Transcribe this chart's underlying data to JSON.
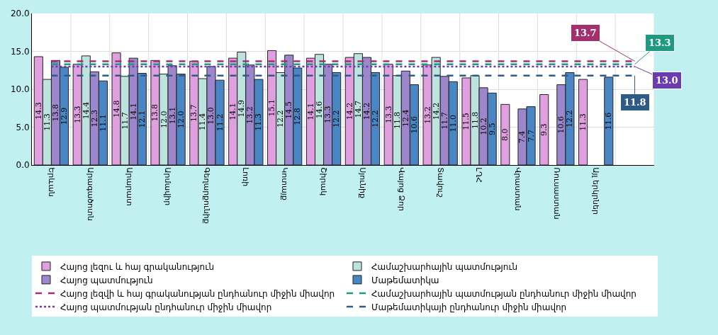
{
  "chart_data": {
    "type": "bar",
    "categories": [
      "Երևան",
      "Արագածոտն",
      "Արարատ",
      "Արմավիր",
      "Գեղարքունիք",
      "Լոռի",
      "Կոտայք",
      "Շիրակ",
      "Սյունիք",
      "Վայոց Ձոր",
      "Տավուշ",
      "ԼՂՀ",
      "Վրաստան",
      "Ռուսաստան",
      "Այլ երկրներ",
      null
    ],
    "series": [
      {
        "name": "Հայոց լեզու և հայ գրականություն",
        "color": "#e0a0e0",
        "values": [
          14.3,
          13.3,
          14.8,
          13.8,
          13.7,
          14.1,
          15.1,
          14.1,
          14.2,
          13.3,
          13.2,
          11.5,
          8.0,
          9.3,
          11.3,
          null
        ],
        "value_labels": [
          "14.3",
          "13.3",
          "14.8",
          "13.8",
          "13.7",
          "14.1",
          "15.1",
          "14.1",
          "14.2",
          "13.3",
          "13.2",
          "11.5",
          "8.0",
          "9.3",
          "11.3",
          null
        ]
      },
      {
        "name": "Համաշխարհային պատմություն",
        "color": "#bde3df",
        "values": [
          11.3,
          14.4,
          11.7,
          12.0,
          11.4,
          14.9,
          12.2,
          14.6,
          14.7,
          11.8,
          14.2,
          11.8,
          null,
          null,
          null,
          null
        ],
        "value_labels": [
          "11.3",
          "14.4",
          "11.7",
          "12.0",
          "11.4",
          "14.9",
          "12.2",
          "14.6",
          "14.7",
          "11.8",
          "14.2",
          "11.8",
          null,
          null,
          null,
          null
        ]
      },
      {
        "name": "Հայոց պատմություն",
        "color": "#9e86cc",
        "values": [
          13.8,
          12.3,
          14.1,
          13.1,
          13.0,
          13.2,
          14.5,
          13.3,
          14.2,
          12.4,
          11.7,
          10.2,
          7.4,
          10.6,
          null,
          null
        ],
        "value_labels": [
          "13.8",
          "12.3",
          "14.1",
          "13.1",
          "13.0",
          "13.2",
          "14.5",
          "13.3",
          "14.2",
          "12.4",
          "11.7",
          "10.2",
          "7.4",
          "10.6",
          null,
          null
        ]
      },
      {
        "name": "Մաթեմատիկա",
        "color": "#4a86c4",
        "values": [
          12.9,
          11.1,
          12.1,
          12.0,
          11.2,
          11.3,
          12.8,
          12.2,
          12.2,
          10.6,
          11.0,
          9.5,
          7.7,
          12.2,
          11.6,
          null
        ],
        "value_labels": [
          "12.9",
          "11.1",
          "12.1",
          "12.0",
          "11.2",
          "11.3",
          "12.8",
          "12.2",
          "12.2",
          "10.6",
          "11.0",
          "9.5",
          "7.7",
          "12.2",
          "11.6",
          null
        ]
      },
      {
        "name": "Հայոց լեզվի և հայ գրականության ընդհանուր միջին միավոր",
        "type": "line",
        "color": "#a0306e",
        "line_style": "dashed",
        "values": [
          13.7,
          13.7,
          13.7,
          13.7,
          13.7,
          13.7,
          13.7,
          13.7,
          13.7,
          13.7,
          13.7,
          13.7,
          13.7,
          13.7,
          13.7,
          13.7
        ],
        "value_labels": [
          null,
          null,
          null,
          null,
          null,
          null,
          null,
          null,
          null,
          null,
          null,
          null,
          null,
          null,
          null,
          "13.7"
        ]
      },
      {
        "name": "Համաշխարհային պատմության ընդհանուր միջին միավոր",
        "type": "line",
        "color": "#1e9a80",
        "line_style": "dashed",
        "values": [
          13.3,
          13.3,
          13.3,
          13.3,
          13.3,
          13.3,
          13.3,
          13.3,
          13.3,
          13.3,
          13.3,
          13.3,
          13.3,
          13.3,
          13.3,
          13.3
        ],
        "value_labels": [
          null,
          null,
          null,
          null,
          null,
          null,
          null,
          null,
          null,
          null,
          null,
          null,
          null,
          null,
          null,
          "13.3"
        ]
      },
      {
        "name": "Հայոց պատմության ընդհանուր միջին միավոր",
        "type": "line",
        "color": "#6a3cb0",
        "line_style": "dotted",
        "values": [
          13.0,
          13.0,
          13.0,
          13.0,
          13.0,
          13.0,
          13.0,
          13.0,
          13.0,
          13.0,
          13.0,
          13.0,
          13.0,
          13.0,
          13.0,
          13.0
        ],
        "value_labels": [
          null,
          null,
          null,
          null,
          null,
          null,
          null,
          null,
          null,
          null,
          null,
          null,
          null,
          null,
          null,
          "13.0"
        ]
      },
      {
        "name": "Մաթեմատիկայի ընդհանուր միջին միավոր",
        "type": "line",
        "color": "#2e5a88",
        "line_style": "dashed",
        "values": [
          11.8,
          11.8,
          11.8,
          11.8,
          11.8,
          11.8,
          11.8,
          11.8,
          11.8,
          11.8,
          11.8,
          11.8,
          11.8,
          11.8,
          11.8,
          11.8
        ],
        "value_labels": [
          null,
          null,
          null,
          null,
          null,
          null,
          null,
          null,
          null,
          null,
          null,
          null,
          null,
          null,
          null,
          "11.8"
        ]
      }
    ],
    "ylim": [
      0,
      20
    ],
    "yticks": [
      {
        "value": 0,
        "label": "0.0"
      },
      {
        "value": 5,
        "label": "5.0"
      },
      {
        "value": 10,
        "label": "10.0"
      },
      {
        "value": 15,
        "label": "15.0"
      },
      {
        "value": 20,
        "label": "20.0"
      }
    ],
    "grid": true,
    "legend": "bottom"
  }
}
